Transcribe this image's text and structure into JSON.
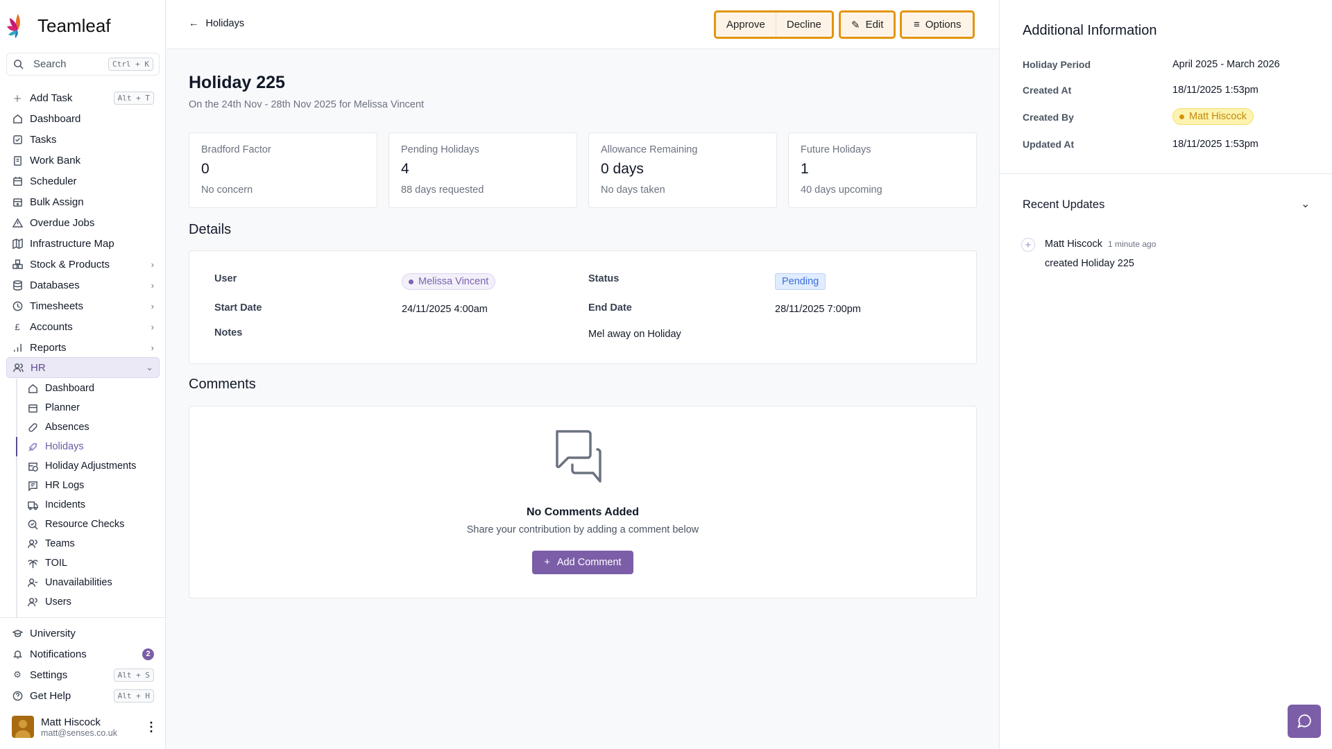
{
  "app": {
    "name": "Teamleaf"
  },
  "search": {
    "label": "Search",
    "shortcut": "Ctrl + K"
  },
  "sidebar": {
    "add_task": {
      "label": "Add Task",
      "shortcut": "Alt + T"
    },
    "items": [
      "Dashboard",
      "Tasks",
      "Work Bank",
      "Scheduler",
      "Bulk Assign",
      "Overdue Jobs",
      "Infrastructure Map",
      "Stock & Products",
      "Databases",
      "Timesheets",
      "Accounts",
      "Reports",
      "HR"
    ],
    "hr_items": [
      "Dashboard",
      "Planner",
      "Absences",
      "Holidays",
      "Holiday Adjustments",
      "HR Logs",
      "Incidents",
      "Resource Checks",
      "Teams",
      "TOIL",
      "Unavailabilities",
      "Users"
    ],
    "university": "University",
    "notifications": {
      "label": "Notifications",
      "count": "2"
    },
    "settings": {
      "label": "Settings",
      "shortcut": "Alt + S"
    },
    "help": {
      "label": "Get Help",
      "shortcut": "Alt + H"
    },
    "user": {
      "name": "Matt Hiscock",
      "email": "matt@senses.co.uk"
    }
  },
  "header": {
    "back": "Holidays",
    "approve": "Approve",
    "decline": "Decline",
    "edit": "Edit",
    "options": "Options"
  },
  "page": {
    "title": "Holiday 225",
    "subtitle": "On the 24th Nov - 28th Nov 2025 for Melissa Vincent"
  },
  "stats": [
    {
      "label": "Bradford Factor",
      "value": "0",
      "sub": "No concern"
    },
    {
      "label": "Pending Holidays",
      "value": "4",
      "sub": "88 days requested"
    },
    {
      "label": "Allowance Remaining",
      "value": "0 days",
      "sub": "No days taken"
    },
    {
      "label": "Future Holidays",
      "value": "1",
      "sub": "40 days upcoming"
    }
  ],
  "details": {
    "heading": "Details",
    "user_label": "User",
    "user": "Melissa Vincent",
    "status_label": "Status",
    "status": "Pending",
    "start_label": "Start Date",
    "start": "24/11/2025 4:00am",
    "end_label": "End Date",
    "end": "28/11/2025 7:00pm",
    "notes_label": "Notes",
    "notes": "Mel away on Holiday"
  },
  "comments": {
    "heading": "Comments",
    "empty_title": "No Comments Added",
    "empty_text": "Share your contribution by adding a comment below",
    "add": "Add Comment"
  },
  "additional": {
    "heading": "Additional Information",
    "period_label": "Holiday Period",
    "period": "April 2025 - March 2026",
    "created_at_label": "Created At",
    "created_at": "18/11/2025 1:53pm",
    "created_by_label": "Created By",
    "created_by": "Matt Hiscock",
    "updated_at_label": "Updated At",
    "updated_at": "18/11/2025 1:53pm"
  },
  "updates": {
    "heading": "Recent Updates",
    "items": [
      {
        "user": "Matt Hiscock",
        "time": "1 minute ago",
        "text": "created Holiday 225"
      }
    ]
  },
  "colors": {
    "accent": "#7b5ea7",
    "action_border": "#e3940f",
    "pending": "#3b82f6",
    "creator_badge": "#fdf3b0"
  }
}
